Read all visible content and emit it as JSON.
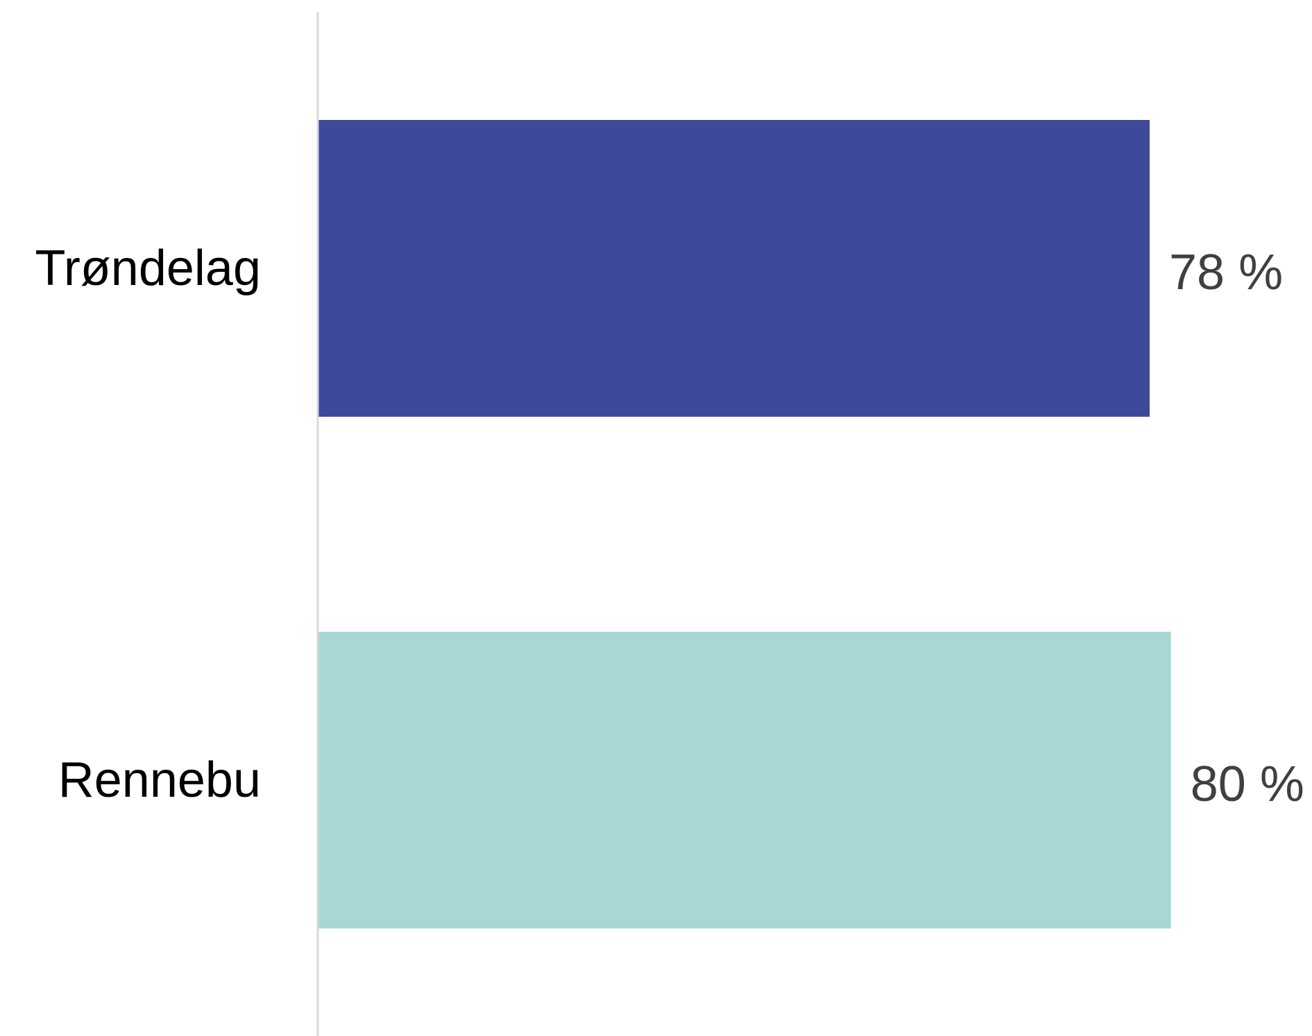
{
  "chart_data": {
    "type": "bar",
    "orientation": "horizontal",
    "categories": [
      "Trøndelag",
      "Rennebu"
    ],
    "values": [
      78,
      80
    ],
    "data_labels": [
      "78 %",
      "80 %"
    ],
    "colors": [
      "#3E4A99",
      "#A8D8D5"
    ],
    "axis_color": "#D9D9D9",
    "xlim": [
      0,
      100
    ],
    "grid": false,
    "legend": "none"
  }
}
